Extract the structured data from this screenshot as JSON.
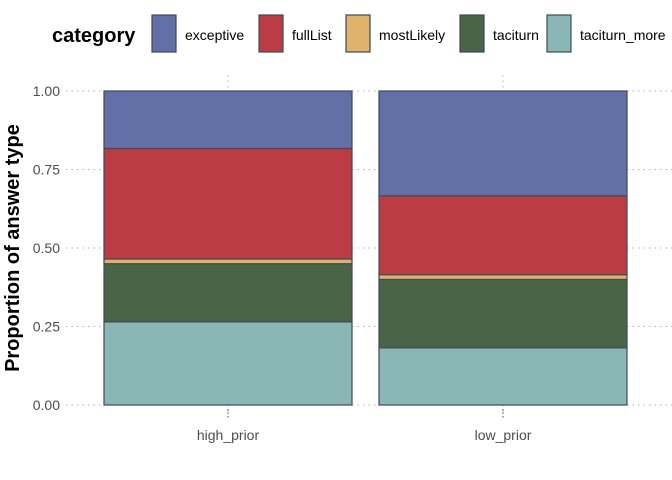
{
  "chart_data": {
    "type": "bar",
    "stacked": true,
    "legend_title": "category",
    "legend_position": "top",
    "ylabel": "Proportion of answer type",
    "xlabel": "",
    "ylim": [
      0,
      1
    ],
    "yticks": [
      0,
      0.25,
      0.5,
      0.75,
      1
    ],
    "ytick_labels": [
      "0.00",
      "0.25",
      "0.50",
      "0.75",
      "1.00"
    ],
    "grid": true,
    "categories": [
      "high_prior",
      "low_prior"
    ],
    "series": [
      {
        "name": "taciturn_more",
        "color": "#8ab6b5",
        "values": [
          0.265,
          0.182
        ]
      },
      {
        "name": "taciturn",
        "color": "#4a6448",
        "values": [
          0.185,
          0.218
        ]
      },
      {
        "name": "mostLikely",
        "color": "#deb26b",
        "values": [
          0.015,
          0.015
        ]
      },
      {
        "name": "fullList",
        "color": "#bb3c43",
        "values": [
          0.352,
          0.251
        ]
      },
      {
        "name": "exceptive",
        "color": "#6270a7",
        "values": [
          0.183,
          0.334
        ]
      }
    ],
    "legend_order": [
      "exceptive",
      "fullList",
      "mostLikely",
      "taciturn",
      "taciturn_more"
    ]
  }
}
